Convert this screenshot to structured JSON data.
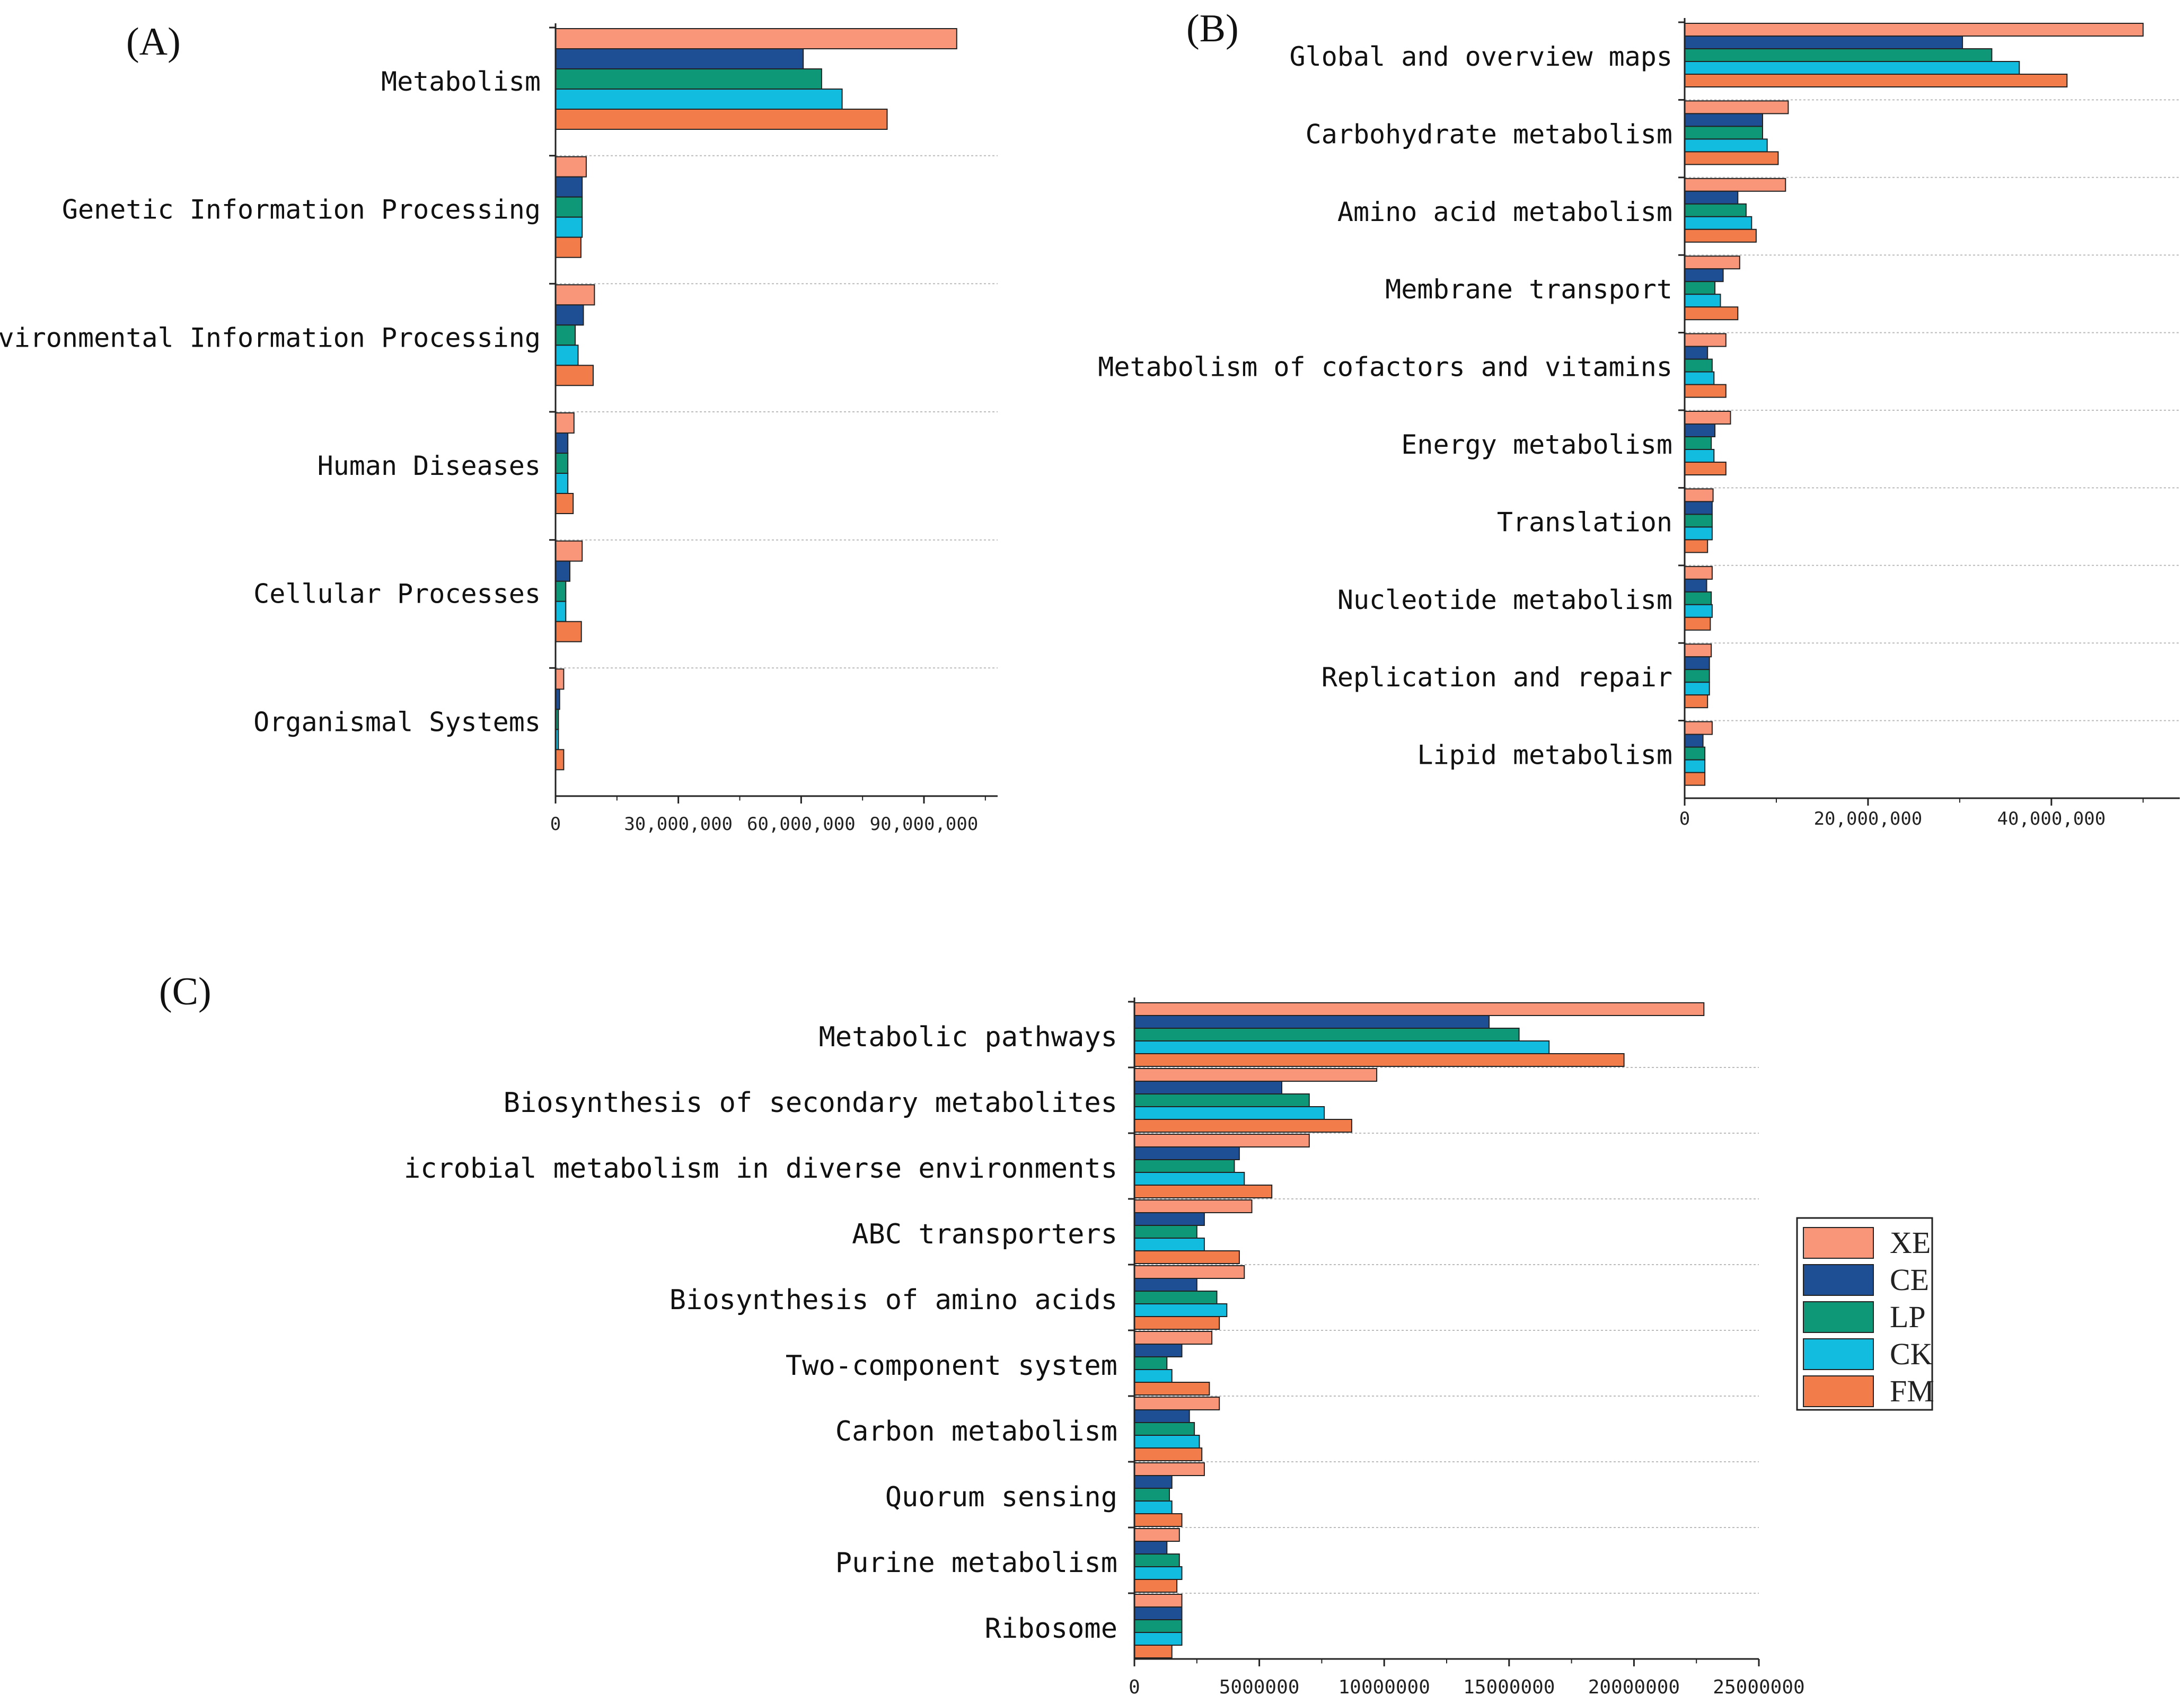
{
  "colors": {
    "XE": "#F9967A",
    "CE": "#1E4E94",
    "LP": "#0F9878",
    "CK": "#12BCDF",
    "FM": "#F27C4A",
    "axis": "#222222",
    "separator": "#BBBBBB"
  },
  "legend": {
    "entries": [
      "XE",
      "CE",
      "LP",
      "CK",
      "FM"
    ]
  },
  "chart_data": [
    {
      "type": "bar",
      "orientation": "horizontal",
      "panel_label": "(A)",
      "categories": [
        "Metabolism",
        "Genetic Information Processing",
        "Environmental Information Processing",
        "Human Diseases",
        "Cellular Processes",
        "Organismal Systems"
      ],
      "series": [
        {
          "name": "XE",
          "values": [
            98000000,
            7500000,
            9500000,
            4500000,
            6500000,
            2000000
          ]
        },
        {
          "name": "CE",
          "values": [
            60500000,
            6500000,
            6800000,
            3000000,
            3500000,
            1000000
          ]
        },
        {
          "name": "LP",
          "values": [
            65000000,
            6500000,
            4800000,
            3000000,
            2500000,
            700000
          ]
        },
        {
          "name": "CK",
          "values": [
            70000000,
            6500000,
            5500000,
            3000000,
            2500000,
            700000
          ]
        },
        {
          "name": "FM",
          "values": [
            81000000,
            6200000,
            9200000,
            4300000,
            6300000,
            2000000
          ]
        }
      ],
      "xlim": [
        0,
        108000000
      ],
      "xticks": [
        0,
        30000000,
        60000000,
        90000000
      ],
      "xtick_labels": [
        "0",
        "30,000,000",
        "60,000,000",
        "90,000,000"
      ],
      "grid": false,
      "group_separators": true
    },
    {
      "type": "bar",
      "orientation": "horizontal",
      "panel_label": "(B)",
      "categories": [
        "Global and overview maps",
        "Carbohydrate metabolism",
        "Amino acid metabolism",
        "Membrane transport",
        "Metabolism of cofactors and vitamins",
        "Energy metabolism",
        "Translation",
        "Nucleotide metabolism",
        "Replication and repair",
        "Lipid metabolism"
      ],
      "series": [
        {
          "name": "XE",
          "values": [
            50000000,
            11300000,
            11000000,
            6000000,
            4500000,
            5000000,
            3100000,
            3000000,
            2900000,
            3000000
          ]
        },
        {
          "name": "CE",
          "values": [
            30300000,
            8500000,
            5800000,
            4200000,
            2500000,
            3300000,
            3000000,
            2400000,
            2700000,
            2000000
          ]
        },
        {
          "name": "LP",
          "values": [
            33500000,
            8500000,
            6700000,
            3300000,
            3000000,
            2900000,
            3000000,
            2900000,
            2700000,
            2200000
          ]
        },
        {
          "name": "CK",
          "values": [
            36500000,
            9000000,
            7300000,
            3900000,
            3200000,
            3200000,
            3000000,
            3000000,
            2700000,
            2200000
          ]
        },
        {
          "name": "FM",
          "values": [
            41700000,
            10200000,
            7800000,
            5800000,
            4500000,
            4500000,
            2500000,
            2800000,
            2500000,
            2200000
          ]
        }
      ],
      "xlim": [
        0,
        54000000
      ],
      "xticks": [
        0,
        20000000,
        40000000
      ],
      "xtick_labels": [
        "0",
        "20,000,000",
        "40,000,000"
      ],
      "grid": false,
      "group_separators": true
    },
    {
      "type": "bar",
      "orientation": "horizontal",
      "panel_label": "(C)",
      "categories": [
        "Metabolic pathways",
        "Biosynthesis of secondary metabolites",
        "icrobial metabolism in diverse environments",
        "ABC transporters",
        "Biosynthesis of amino acids",
        "Two-component system",
        "Carbon metabolism",
        "Quorum sensing",
        "Purine metabolism",
        "Ribosome"
      ],
      "series": [
        {
          "name": "XE",
          "values": [
            22800000,
            9700000,
            7000000,
            4700000,
            4400000,
            3100000,
            3400000,
            2800000,
            1800000,
            1900000
          ]
        },
        {
          "name": "CE",
          "values": [
            14200000,
            5900000,
            4200000,
            2800000,
            2500000,
            1900000,
            2200000,
            1500000,
            1300000,
            1900000
          ]
        },
        {
          "name": "LP",
          "values": [
            15400000,
            7000000,
            4000000,
            2500000,
            3300000,
            1300000,
            2400000,
            1400000,
            1800000,
            1900000
          ]
        },
        {
          "name": "CK",
          "values": [
            16600000,
            7600000,
            4400000,
            2800000,
            3700000,
            1500000,
            2600000,
            1500000,
            1900000,
            1900000
          ]
        },
        {
          "name": "FM",
          "values": [
            19600000,
            8700000,
            5500000,
            4200000,
            3400000,
            3000000,
            2700000,
            1900000,
            1700000,
            1500000
          ]
        }
      ],
      "xlim": [
        0,
        25000000
      ],
      "xticks": [
        0,
        5000000,
        10000000,
        15000000,
        20000000,
        25000000
      ],
      "xtick_labels": [
        "0",
        "5000000",
        "10000000",
        "15000000",
        "20000000",
        "25000000"
      ],
      "grid": false,
      "group_separators": true,
      "legend": {
        "position": "right",
        "entries": [
          "XE",
          "CE",
          "LP",
          "CK",
          "FM"
        ]
      }
    }
  ]
}
